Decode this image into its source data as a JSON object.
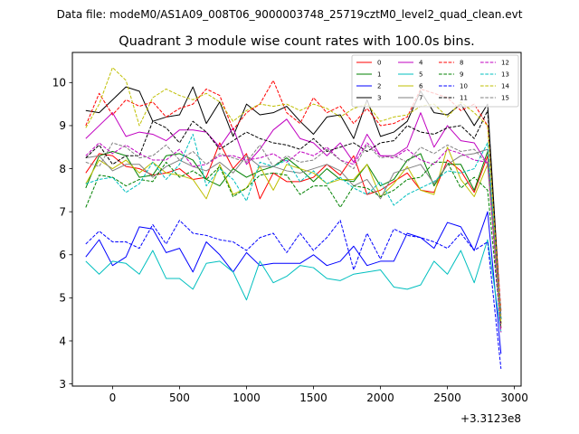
{
  "chart_data": {
    "type": "line",
    "supertitle": "Data file: modeM0/AS1A09_008T06_9000003748_25719cztM0_level2_quad_clean.evt",
    "title": "Quadrant 3 module wise count rates with 100.0s bins.",
    "xlabel": "",
    "ylabel": "",
    "x_offset_label": "+3.3123e8",
    "xlim": [
      -300,
      3050
    ],
    "ylim": [
      2.95,
      10.7
    ],
    "xticks": [
      0,
      500,
      1000,
      1500,
      2000,
      2500,
      3000
    ],
    "yticks": [
      3,
      4,
      5,
      6,
      7,
      8,
      9,
      10
    ],
    "x": [
      -200,
      -100,
      0,
      100,
      200,
      300,
      400,
      500,
      600,
      700,
      800,
      900,
      1000,
      1100,
      1200,
      1300,
      1400,
      1500,
      1600,
      1700,
      1800,
      1900,
      2000,
      2100,
      2200,
      2300,
      2400,
      2500,
      2600,
      2700,
      2800,
      2900
    ],
    "legend_position": "top-right",
    "series": [
      {
        "name": "0",
        "color": "#ff0000",
        "dash": "solid",
        "values": [
          7.9,
          8.35,
          8.3,
          8.05,
          8.0,
          7.85,
          7.9,
          8.0,
          7.75,
          7.8,
          8.6,
          8.0,
          8.35,
          7.3,
          7.9,
          7.7,
          7.7,
          7.8,
          8.1,
          7.85,
          8.3,
          7.4,
          7.5,
          7.7,
          7.9,
          7.5,
          7.45,
          8.2,
          7.95,
          7.45,
          8.3,
          4.3
        ]
      },
      {
        "name": "1",
        "color": "#008000",
        "dash": "solid",
        "values": [
          7.55,
          8.3,
          8.4,
          8.3,
          7.8,
          7.85,
          8.3,
          8.35,
          8.2,
          7.75,
          7.6,
          8.0,
          7.8,
          7.95,
          8.05,
          8.25,
          8.0,
          7.7,
          8.0,
          7.75,
          7.7,
          8.1,
          7.6,
          7.75,
          8.2,
          8.35,
          7.6,
          8.1,
          8.1,
          7.5,
          8.4,
          4.5
        ]
      },
      {
        "name": "2",
        "color": "#0000ff",
        "dash": "solid",
        "values": [
          5.95,
          6.35,
          5.75,
          5.95,
          6.65,
          6.6,
          6.05,
          6.15,
          5.6,
          6.3,
          6.0,
          5.6,
          6.05,
          5.75,
          5.8,
          5.8,
          5.8,
          6.0,
          5.75,
          5.85,
          6.2,
          5.75,
          5.85,
          5.85,
          6.5,
          6.4,
          6.15,
          6.75,
          6.65,
          6.1,
          7.0,
          3.7
        ]
      },
      {
        "name": "3",
        "color": "#000000",
        "dash": "solid",
        "values": [
          9.35,
          9.3,
          9.6,
          9.9,
          9.8,
          9.1,
          9.2,
          9.25,
          9.9,
          9.05,
          9.55,
          8.75,
          9.5,
          9.25,
          9.3,
          9.45,
          9.1,
          8.8,
          9.2,
          9.25,
          8.7,
          9.6,
          8.75,
          8.85,
          9.1,
          9.8,
          9.3,
          9.25,
          9.5,
          9.0,
          9.5,
          4.5
        ]
      },
      {
        "name": "4",
        "color": "#c000c0",
        "dash": "solid",
        "values": [
          8.7,
          9.0,
          9.3,
          8.75,
          8.85,
          8.8,
          8.65,
          8.9,
          8.9,
          8.85,
          8.5,
          8.95,
          8.1,
          8.45,
          8.9,
          9.15,
          8.7,
          8.6,
          8.3,
          8.6,
          8.15,
          8.8,
          8.3,
          8.3,
          8.5,
          9.3,
          8.5,
          9.0,
          8.65,
          8.6,
          8.1,
          4.6
        ]
      },
      {
        "name": "5",
        "color": "#00bfbf",
        "dash": "solid",
        "values": [
          5.85,
          5.55,
          5.85,
          5.8,
          5.55,
          6.1,
          5.45,
          5.45,
          5.2,
          5.8,
          5.85,
          5.6,
          4.95,
          5.85,
          5.35,
          5.5,
          5.75,
          5.7,
          5.45,
          5.4,
          5.55,
          5.6,
          5.65,
          5.25,
          5.2,
          5.3,
          5.85,
          5.55,
          6.1,
          5.35,
          6.35,
          4.2
        ]
      },
      {
        "name": "6",
        "color": "#bfbf00",
        "dash": "solid",
        "values": [
          7.65,
          8.2,
          8.0,
          8.2,
          7.9,
          8.15,
          7.9,
          7.85,
          7.75,
          7.3,
          8.1,
          7.4,
          7.55,
          8.05,
          7.5,
          8.1,
          8.0,
          7.9,
          7.65,
          7.75,
          7.75,
          8.1,
          7.35,
          7.65,
          8.05,
          7.5,
          7.4,
          8.5,
          7.75,
          7.35,
          8.1,
          4.4
        ]
      },
      {
        "name": "7",
        "color": "#808080",
        "dash": "solid",
        "values": [
          8.25,
          8.3,
          7.95,
          8.1,
          8.1,
          7.8,
          8.05,
          8.2,
          8.05,
          7.95,
          8.15,
          7.9,
          8.3,
          8.05,
          8.05,
          7.95,
          7.9,
          8.0,
          8.1,
          7.95,
          7.6,
          7.75,
          7.3,
          7.9,
          8.0,
          8.1,
          7.65,
          8.1,
          8.3,
          8.35,
          8.45,
          4.5
        ]
      },
      {
        "name": "8",
        "color": "#ff0000",
        "dash": "dashed",
        "values": [
          9.0,
          9.75,
          9.25,
          9.6,
          9.45,
          9.55,
          9.2,
          9.4,
          9.5,
          9.85,
          9.7,
          8.9,
          9.3,
          9.5,
          10.05,
          9.3,
          9.05,
          9.65,
          9.3,
          9.45,
          9.05,
          9.4,
          9.0,
          9.05,
          9.2,
          9.85,
          9.75,
          9.65,
          9.35,
          9.5,
          9.0,
          4.7
        ]
      },
      {
        "name": "9",
        "color": "#008000",
        "dash": "dashed",
        "values": [
          7.1,
          7.85,
          7.8,
          7.6,
          7.75,
          7.7,
          8.15,
          7.8,
          7.95,
          7.75,
          8.05,
          7.35,
          7.55,
          7.85,
          7.9,
          7.85,
          7.4,
          7.6,
          7.6,
          7.1,
          7.6,
          7.55,
          7.35,
          7.5,
          7.75,
          7.8,
          8.15,
          8.15,
          7.55,
          7.8,
          7.5,
          4.3
        ]
      },
      {
        "name": "10",
        "color": "#0000ff",
        "dash": "dashed",
        "values": [
          6.25,
          6.55,
          6.3,
          6.3,
          6.15,
          6.7,
          6.25,
          6.8,
          6.5,
          6.45,
          6.35,
          6.3,
          6.1,
          6.4,
          6.5,
          6.05,
          6.5,
          6.1,
          6.4,
          6.8,
          5.65,
          6.5,
          5.9,
          6.6,
          6.45,
          6.4,
          6.3,
          6.15,
          6.5,
          6.1,
          6.3,
          3.35
        ]
      },
      {
        "name": "11",
        "color": "#000000",
        "dash": "dashed",
        "values": [
          8.25,
          8.55,
          8.1,
          8.3,
          8.3,
          9.1,
          8.95,
          8.6,
          9.1,
          8.85,
          8.45,
          8.65,
          8.85,
          8.7,
          8.6,
          8.55,
          8.45,
          8.7,
          8.4,
          8.5,
          8.6,
          8.4,
          8.6,
          8.65,
          9.0,
          8.85,
          8.8,
          8.95,
          9.0,
          8.7,
          9.35,
          4.4
        ]
      },
      {
        "name": "12",
        "color": "#c000c0",
        "dash": "dashed",
        "values": [
          8.3,
          8.6,
          8.35,
          8.55,
          8.35,
          8.2,
          8.2,
          8.45,
          8.05,
          8.1,
          8.3,
          8.3,
          8.2,
          8.25,
          8.35,
          8.15,
          8.4,
          8.3,
          8.5,
          8.2,
          8.1,
          8.6,
          8.3,
          8.25,
          8.45,
          8.2,
          8.1,
          8.45,
          8.35,
          8.2,
          8.15,
          4.2
        ]
      },
      {
        "name": "13",
        "color": "#00bfbf",
        "dash": "dashed",
        "values": [
          7.65,
          7.75,
          7.8,
          7.45,
          7.65,
          8.15,
          7.75,
          8.1,
          8.8,
          7.6,
          8.0,
          7.75,
          7.25,
          8.15,
          8.05,
          8.2,
          7.7,
          7.95,
          7.65,
          7.8,
          7.55,
          7.4,
          7.7,
          7.15,
          7.4,
          7.55,
          7.7,
          7.95,
          7.9,
          8.0,
          8.6,
          4.5
        ]
      },
      {
        "name": "14",
        "color": "#bfbf00",
        "dash": "dashed",
        "values": [
          8.95,
          9.5,
          10.35,
          10.05,
          9.0,
          9.65,
          9.85,
          9.7,
          9.6,
          9.75,
          9.55,
          9.1,
          9.35,
          9.5,
          9.45,
          9.5,
          9.35,
          9.5,
          9.4,
          9.2,
          9.4,
          9.5,
          9.1,
          9.2,
          9.25,
          9.45,
          9.5,
          9.2,
          9.55,
          9.3,
          9.0,
          4.4
        ]
      },
      {
        "name": "15",
        "color": "#808080",
        "dash": "dashed",
        "values": [
          8.15,
          8.05,
          8.6,
          8.5,
          8.25,
          8.3,
          8.55,
          8.2,
          8.4,
          8.1,
          8.35,
          8.25,
          8.15,
          8.55,
          8.05,
          8.3,
          8.15,
          8.2,
          8.45,
          8.2,
          8.0,
          8.55,
          8.25,
          8.3,
          8.15,
          8.5,
          8.35,
          8.55,
          8.4,
          8.45,
          8.1,
          4.7
        ]
      }
    ]
  }
}
